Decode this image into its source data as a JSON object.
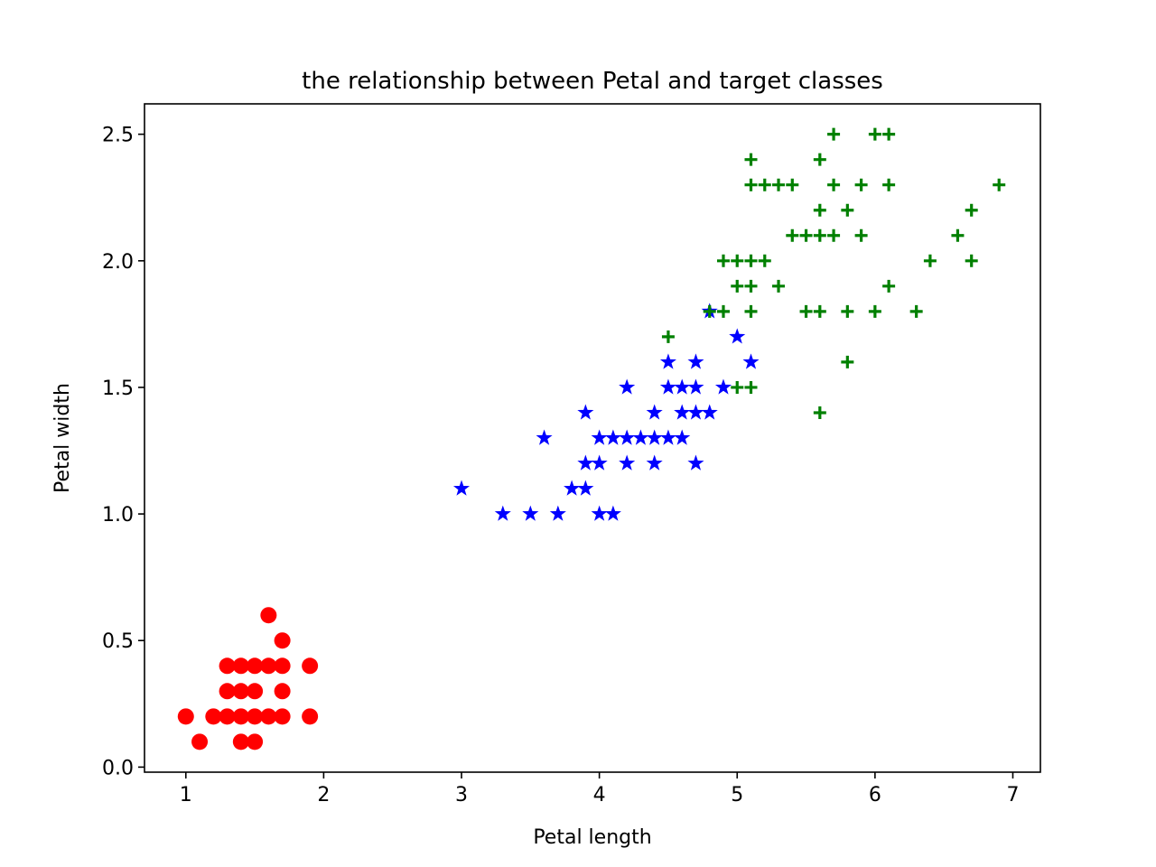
{
  "chart_data": {
    "type": "scatter",
    "title": "the relationship between Petal and target classes",
    "xlabel": "Petal length",
    "ylabel": "Petal width",
    "xlim": [
      0.7,
      7.2
    ],
    "ylim": [
      -0.02,
      2.62
    ],
    "xticks": [
      1,
      2,
      3,
      4,
      5,
      6,
      7
    ],
    "xtick_labels": [
      "1",
      "2",
      "3",
      "4",
      "5",
      "6",
      "7"
    ],
    "yticks": [
      0.0,
      0.5,
      1.0,
      1.5,
      2.0,
      2.5
    ],
    "ytick_labels": [
      "0.0",
      "0.5",
      "1.0",
      "1.5",
      "2.0",
      "2.5"
    ],
    "grid": false,
    "legend": "none",
    "series": [
      {
        "marker": "circle",
        "color": "#ff0000",
        "points": [
          [
            1.0,
            0.2
          ],
          [
            1.1,
            0.1
          ],
          [
            1.2,
            0.2
          ],
          [
            1.3,
            0.2
          ],
          [
            1.3,
            0.3
          ],
          [
            1.3,
            0.4
          ],
          [
            1.4,
            0.1
          ],
          [
            1.4,
            0.2
          ],
          [
            1.4,
            0.3
          ],
          [
            1.4,
            0.4
          ],
          [
            1.5,
            0.1
          ],
          [
            1.5,
            0.2
          ],
          [
            1.5,
            0.3
          ],
          [
            1.5,
            0.4
          ],
          [
            1.6,
            0.2
          ],
          [
            1.6,
            0.4
          ],
          [
            1.6,
            0.6
          ],
          [
            1.7,
            0.2
          ],
          [
            1.7,
            0.3
          ],
          [
            1.7,
            0.4
          ],
          [
            1.7,
            0.5
          ],
          [
            1.9,
            0.2
          ],
          [
            1.9,
            0.4
          ]
        ]
      },
      {
        "marker": "star",
        "color": "#0000ff",
        "points": [
          [
            3.0,
            1.1
          ],
          [
            3.3,
            1.0
          ],
          [
            3.5,
            1.0
          ],
          [
            3.6,
            1.3
          ],
          [
            3.7,
            1.0
          ],
          [
            3.8,
            1.1
          ],
          [
            3.9,
            1.1
          ],
          [
            3.9,
            1.2
          ],
          [
            3.9,
            1.4
          ],
          [
            4.0,
            1.0
          ],
          [
            4.0,
            1.2
          ],
          [
            4.0,
            1.3
          ],
          [
            4.1,
            1.0
          ],
          [
            4.1,
            1.3
          ],
          [
            4.2,
            1.2
          ],
          [
            4.2,
            1.3
          ],
          [
            4.2,
            1.5
          ],
          [
            4.3,
            1.3
          ],
          [
            4.4,
            1.2
          ],
          [
            4.4,
            1.3
          ],
          [
            4.4,
            1.4
          ],
          [
            4.5,
            1.3
          ],
          [
            4.5,
            1.5
          ],
          [
            4.5,
            1.6
          ],
          [
            4.6,
            1.3
          ],
          [
            4.6,
            1.4
          ],
          [
            4.6,
            1.5
          ],
          [
            4.7,
            1.2
          ],
          [
            4.7,
            1.4
          ],
          [
            4.7,
            1.5
          ],
          [
            4.7,
            1.6
          ],
          [
            4.8,
            1.4
          ],
          [
            4.8,
            1.8
          ],
          [
            4.9,
            1.5
          ],
          [
            5.0,
            1.7
          ],
          [
            5.1,
            1.6
          ]
        ]
      },
      {
        "marker": "plus",
        "color": "#008000",
        "points": [
          [
            4.5,
            1.7
          ],
          [
            4.8,
            1.8
          ],
          [
            4.9,
            1.8
          ],
          [
            4.9,
            2.0
          ],
          [
            5.0,
            1.5
          ],
          [
            5.0,
            1.9
          ],
          [
            5.0,
            2.0
          ],
          [
            5.1,
            1.5
          ],
          [
            5.1,
            1.8
          ],
          [
            5.1,
            1.9
          ],
          [
            5.1,
            2.0
          ],
          [
            5.1,
            2.3
          ],
          [
            5.1,
            2.4
          ],
          [
            5.2,
            2.0
          ],
          [
            5.2,
            2.3
          ],
          [
            5.3,
            1.9
          ],
          [
            5.3,
            2.3
          ],
          [
            5.4,
            2.1
          ],
          [
            5.4,
            2.3
          ],
          [
            5.5,
            1.8
          ],
          [
            5.5,
            2.1
          ],
          [
            5.6,
            1.4
          ],
          [
            5.6,
            1.8
          ],
          [
            5.6,
            2.1
          ],
          [
            5.6,
            2.2
          ],
          [
            5.6,
            2.4
          ],
          [
            5.7,
            2.1
          ],
          [
            5.7,
            2.3
          ],
          [
            5.7,
            2.5
          ],
          [
            5.8,
            1.6
          ],
          [
            5.8,
            1.8
          ],
          [
            5.8,
            2.2
          ],
          [
            5.9,
            2.1
          ],
          [
            5.9,
            2.3
          ],
          [
            6.0,
            1.8
          ],
          [
            6.0,
            2.5
          ],
          [
            6.1,
            1.9
          ],
          [
            6.1,
            2.3
          ],
          [
            6.1,
            2.5
          ],
          [
            6.3,
            1.8
          ],
          [
            6.4,
            2.0
          ],
          [
            6.6,
            2.1
          ],
          [
            6.7,
            2.0
          ],
          [
            6.7,
            2.2
          ],
          [
            6.9,
            2.3
          ]
        ]
      }
    ]
  }
}
